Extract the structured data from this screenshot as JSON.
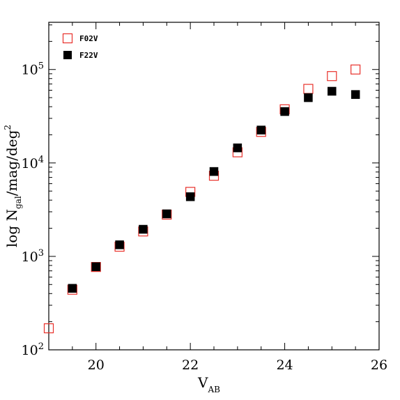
{
  "chart_data": {
    "type": "scatter",
    "title": "",
    "xlabel": "V",
    "xlabel_sub": "AB",
    "ylabel_parts": [
      "log  N",
      "gal",
      "/mag/deg",
      "2"
    ],
    "xlim": [
      19,
      26
    ],
    "ylim": [
      100,
      320000
    ],
    "yscale": "log",
    "grid": false,
    "legend_position": "top-left",
    "x_ticks": [
      20,
      22,
      24,
      26
    ],
    "y_ticks": [
      {
        "value": 100,
        "base": "10",
        "exp": "2"
      },
      {
        "value": 1000,
        "base": "10",
        "exp": "3"
      },
      {
        "value": 10000,
        "base": "10",
        "exp": "4"
      },
      {
        "value": 100000,
        "base": "10",
        "exp": "5"
      }
    ],
    "series": [
      {
        "name": "F02V",
        "marker": "open-square",
        "color": "#e8302a",
        "points": [
          [
            19.0,
            170
          ],
          [
            19.5,
            440
          ],
          [
            20.0,
            770
          ],
          [
            20.5,
            1270
          ],
          [
            21.0,
            1850
          ],
          [
            21.5,
            2800
          ],
          [
            22.0,
            4900
          ],
          [
            22.5,
            7300
          ],
          [
            23.0,
            13000
          ],
          [
            23.5,
            21500
          ],
          [
            24.0,
            37500
          ],
          [
            24.5,
            62000
          ],
          [
            25.0,
            85000
          ],
          [
            25.5,
            100000
          ]
        ]
      },
      {
        "name": "F22V",
        "marker": "filled-square",
        "color": "#000000",
        "points": [
          [
            19.5,
            455
          ],
          [
            20.0,
            775
          ],
          [
            20.5,
            1330
          ],
          [
            21.0,
            1950
          ],
          [
            21.5,
            2850
          ],
          [
            22.0,
            4350
          ],
          [
            22.5,
            8100
          ],
          [
            23.0,
            14500
          ],
          [
            23.5,
            22500
          ],
          [
            24.0,
            35500
          ],
          [
            24.5,
            50000
          ],
          [
            25.0,
            58500
          ],
          [
            25.5,
            54000
          ]
        ]
      }
    ]
  }
}
